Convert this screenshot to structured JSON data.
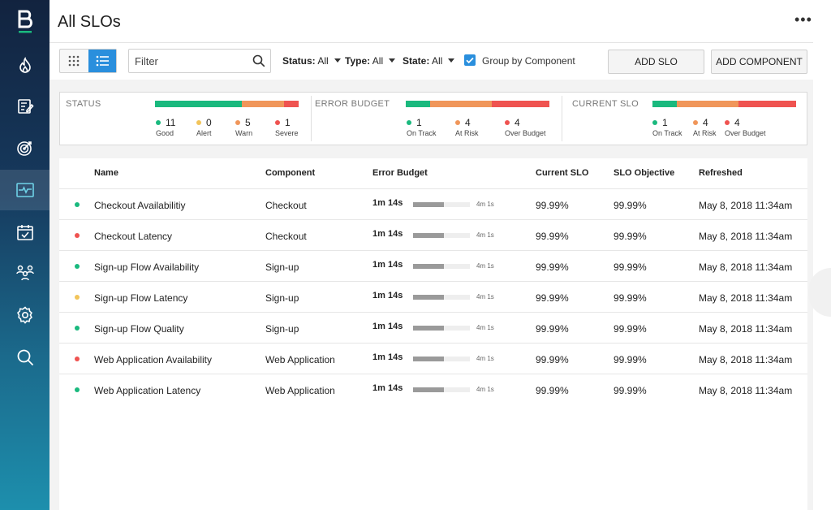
{
  "colors": {
    "green": "#1ab97e",
    "yellow": "#f2c45a",
    "orange": "#f0965a",
    "red": "#ef5350",
    "accent": "#2a8fdd"
  },
  "sidebar": {
    "logo": "B",
    "items": [
      {
        "icon": "flame-icon",
        "active": false
      },
      {
        "icon": "checklist-edit-icon",
        "active": false
      },
      {
        "icon": "target-icon",
        "active": false
      },
      {
        "icon": "pulse-monitor-icon",
        "active": true
      },
      {
        "icon": "calendar-check-icon",
        "active": false
      },
      {
        "icon": "team-icon",
        "active": false
      },
      {
        "icon": "gear-icon",
        "active": false
      },
      {
        "icon": "search-icon",
        "active": false
      }
    ]
  },
  "header": {
    "title": "All SLOs",
    "more": "•••"
  },
  "toolbar": {
    "filter_placeholder": "Filter",
    "status_label": "Status:",
    "status_value": "All",
    "type_label": "Type:",
    "type_value": "All",
    "state_label": "State:",
    "state_value": "All",
    "group_by_label": "Group by Component",
    "group_by_checked": true,
    "add_slo": "ADD SLO",
    "add_component": "ADD COMPONENT"
  },
  "summary": {
    "status": {
      "title": "STATUS",
      "items": [
        {
          "count": "11",
          "label": "Good"
        },
        {
          "count": "0",
          "label": "Alert"
        },
        {
          "count": "5",
          "label": "Warn"
        },
        {
          "count": "1",
          "label": "Severe"
        }
      ]
    },
    "error_budget": {
      "title": "ERROR BUDGET",
      "items": [
        {
          "count": "1",
          "label": "On Track"
        },
        {
          "count": "4",
          "label": "At Risk"
        },
        {
          "count": "4",
          "label": "Over Budget"
        }
      ]
    },
    "current_slo": {
      "title": "CURRENT SLO",
      "items": [
        {
          "count": "1",
          "label": "On Track"
        },
        {
          "count": "4",
          "label": "At Risk"
        },
        {
          "count": "4",
          "label": "Over Budget"
        }
      ]
    }
  },
  "table": {
    "headers": {
      "name": "Name",
      "component": "Component",
      "error_budget": "Error Budget",
      "current_slo": "Current SLO",
      "slo_objective": "SLO Objective",
      "refreshed": "Refreshed"
    },
    "rows": [
      {
        "status": "green",
        "name": "Checkout Availabilitiy",
        "component": "Checkout",
        "eb_used": "1m 14s",
        "eb_total": "4m 1s",
        "eb_fraction": 0.54,
        "current_slo": "99.99%",
        "objective": "99.99%",
        "refreshed": "May 8, 2018 11:34am"
      },
      {
        "status": "red",
        "name": "Checkout Latency",
        "component": "Checkout",
        "eb_used": "1m 14s",
        "eb_total": "4m 1s",
        "eb_fraction": 0.54,
        "current_slo": "99.99%",
        "objective": "99.99%",
        "refreshed": "May 8, 2018 11:34am"
      },
      {
        "status": "green",
        "name": "Sign-up Flow Availability",
        "component": "Sign-up",
        "eb_used": "1m 14s",
        "eb_total": "4m 1s",
        "eb_fraction": 0.54,
        "current_slo": "99.99%",
        "objective": "99.99%",
        "refreshed": "May 8, 2018 11:34am"
      },
      {
        "status": "yellow",
        "name": "Sign-up Flow Latency",
        "component": "Sign-up",
        "eb_used": "1m 14s",
        "eb_total": "4m 1s",
        "eb_fraction": 0.54,
        "current_slo": "99.99%",
        "objective": "99.99%",
        "refreshed": "May 8, 2018 11:34am"
      },
      {
        "status": "green",
        "name": "Sign-up Flow Quality",
        "component": "Sign-up",
        "eb_used": "1m 14s",
        "eb_total": "4m 1s",
        "eb_fraction": 0.54,
        "current_slo": "99.99%",
        "objective": "99.99%",
        "refreshed": "May 8, 2018 11:34am"
      },
      {
        "status": "red",
        "name": "Web Application Availability",
        "component": "Web Application",
        "eb_used": "1m 14s",
        "eb_total": "4m 1s",
        "eb_fraction": 0.54,
        "current_slo": "99.99%",
        "objective": "99.99%",
        "refreshed": "May 8, 2018 11:34am"
      },
      {
        "status": "green",
        "name": "Web Application Latency",
        "component": "Web Application",
        "eb_used": "1m 14s",
        "eb_total": "4m 1s",
        "eb_fraction": 0.54,
        "current_slo": "99.99%",
        "objective": "99.99%",
        "refreshed": "May 8, 2018 11:34am"
      }
    ]
  }
}
